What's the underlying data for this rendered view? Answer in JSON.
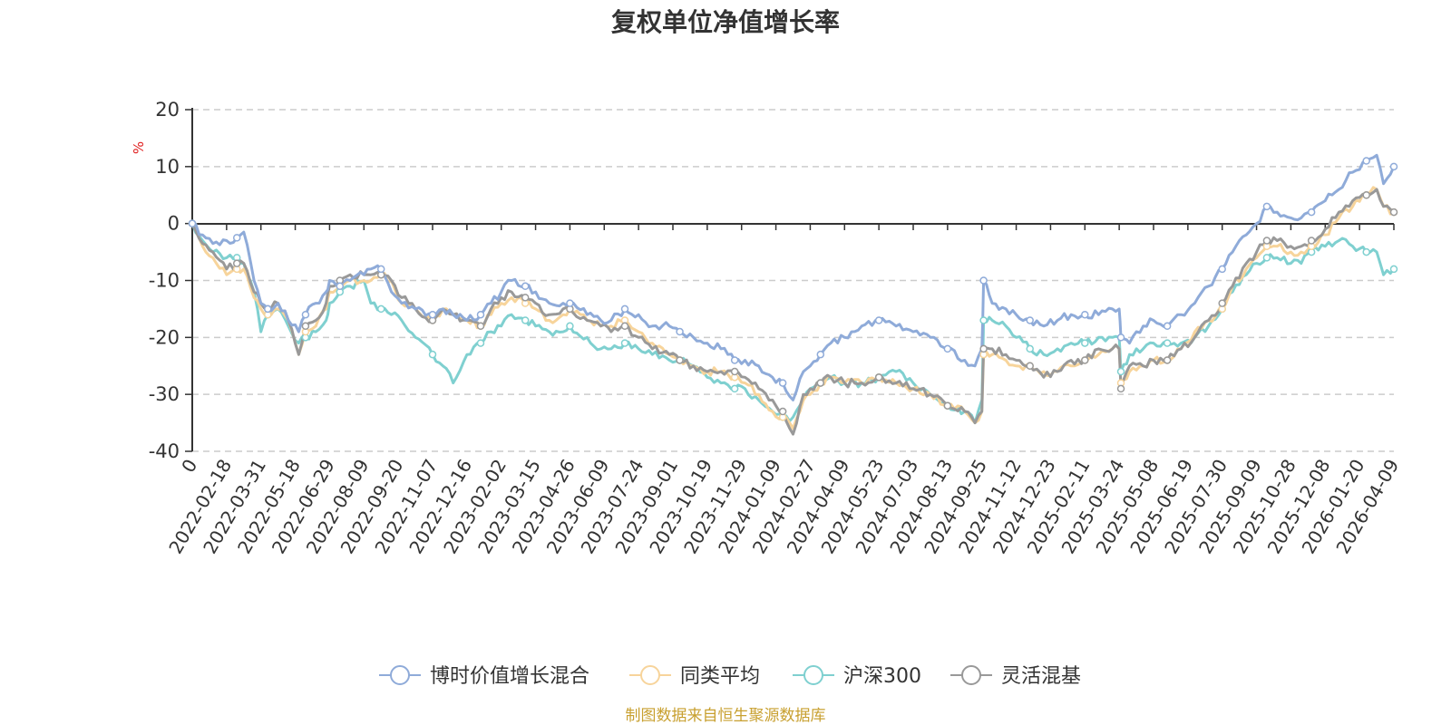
{
  "chart_data": {
    "type": "line",
    "title": "复权单位净值增长率",
    "ylabel": "%",
    "ylim": [
      -40,
      20
    ],
    "yticks": [
      20,
      10,
      0,
      -10,
      -20,
      -30,
      -40
    ],
    "x_tick_labels": [
      "0",
      "2022-02-18",
      "2022-03-31",
      "2022-05-18",
      "2022-06-29",
      "2022-08-09",
      "2022-09-20",
      "2022-11-07",
      "2022-12-16",
      "2023-02-02",
      "2023-03-15",
      "2023-04-26",
      "2023-06-09",
      "2023-07-24",
      "2023-09-01",
      "2023-10-19",
      "2023-11-29",
      "2024-01-09",
      "2024-02-27",
      "2024-04-09",
      "2024-05-23",
      "2024-07-03",
      "2024-08-13",
      "2024-09-25",
      "2024-11-12",
      "2024-12-23",
      "2025-02-11",
      "2025-03-24",
      "2025-05-08",
      "2025-06-19",
      "2025-07-30",
      "2025-09-09",
      "2025-10-28",
      "2025-12-08",
      "2026-01-20",
      "2026-04-09"
    ],
    "x_positions": [
      0,
      1,
      2,
      3,
      4,
      5,
      6,
      7,
      8,
      9,
      10,
      11,
      12,
      13,
      14,
      15,
      16,
      17,
      18,
      19,
      20,
      21,
      22,
      23,
      24,
      25,
      26,
      27,
      28,
      29,
      30,
      31,
      32,
      33,
      34,
      35
    ],
    "x_range": [
      0,
      35
    ],
    "grid": true,
    "legend_position": "bottom",
    "series": [
      {
        "name": "博时价值增长混合",
        "color": "#8fabd9",
        "x": [
          0,
          0.3,
          0.6,
          1.0,
          1.3,
          1.5,
          1.8,
          2.0,
          2.2,
          2.5,
          2.8,
          3.1,
          3.3,
          3.6,
          3.9,
          4.0,
          4.3,
          4.6,
          5.0,
          5.2,
          5.5,
          5.8,
          6.1,
          6.5,
          7.0,
          7.3,
          7.6,
          8.0,
          8.4,
          8.7,
          9.0,
          9.3,
          9.7,
          10.0,
          10.4,
          10.8,
          11.0,
          11.5,
          11.9,
          12.2,
          12.6,
          13.0,
          13.4,
          13.9,
          14.2,
          14.6,
          15.0,
          15.4,
          15.8,
          16.1,
          16.5,
          16.9,
          17.2,
          17.5,
          17.8,
          18.0,
          18.3,
          18.6,
          19.0,
          19.5,
          20.0,
          20.5,
          21.0,
          21.5,
          22.0,
          22.5,
          22.8,
          23.0,
          23.05,
          23.3,
          23.7,
          24.0,
          24.4,
          24.8,
          25.2,
          25.6,
          26.0,
          26.4,
          26.8,
          27.0,
          27.05,
          27.3,
          27.7,
          28.0,
          28.4,
          28.8,
          29.2,
          29.6,
          30.0,
          30.3,
          30.7,
          31.0,
          31.3,
          31.6,
          32.0,
          32.3,
          32.6,
          33.0,
          33.4,
          33.8,
          34.2,
          34.5,
          34.7,
          35.0
        ],
        "values": [
          0,
          -2,
          -3.5,
          -3,
          -2.5,
          -1.5,
          -10,
          -14,
          -15,
          -14,
          -17,
          -19,
          -16,
          -14,
          -12,
          -10,
          -11,
          -10,
          -9,
          -8,
          -8,
          -12,
          -14,
          -15,
          -16,
          -15,
          -16,
          -17,
          -16,
          -14,
          -12,
          -10,
          -11,
          -12,
          -14,
          -14,
          -14,
          -16,
          -17,
          -17,
          -15,
          -16,
          -18,
          -18,
          -19,
          -20,
          -21,
          -22,
          -24,
          -24,
          -25,
          -27,
          -28,
          -31,
          -26,
          -25,
          -23,
          -21,
          -20,
          -18,
          -17,
          -18,
          -19,
          -20,
          -22,
          -24,
          -25,
          -22,
          -10,
          -14,
          -15,
          -16,
          -17,
          -18,
          -17,
          -16,
          -16,
          -16,
          -15,
          -15,
          -20,
          -21,
          -18,
          -17,
          -18,
          -16,
          -14,
          -11,
          -8,
          -5,
          -2,
          0,
          3,
          2,
          1,
          1,
          2,
          4,
          6,
          9,
          11,
          12,
          7,
          10
        ]
      },
      {
        "name": "同类平均",
        "color": "#f7d49b",
        "x": [
          0,
          0.3,
          0.6,
          1.0,
          1.3,
          1.5,
          1.8,
          2.0,
          2.2,
          2.5,
          2.8,
          3.1,
          3.3,
          3.6,
          3.9,
          4.0,
          4.3,
          4.6,
          5.0,
          5.2,
          5.5,
          5.8,
          6.1,
          6.5,
          7.0,
          7.3,
          7.6,
          8.0,
          8.4,
          8.7,
          9.0,
          9.3,
          9.7,
          10.0,
          10.4,
          10.8,
          11.0,
          11.5,
          11.9,
          12.2,
          12.6,
          13.0,
          13.4,
          13.9,
          14.2,
          14.6,
          15.0,
          15.4,
          15.8,
          16.1,
          16.5,
          16.9,
          17.2,
          17.5,
          17.8,
          18.0,
          18.3,
          18.6,
          19.0,
          19.5,
          20.0,
          20.5,
          21.0,
          21.5,
          22.0,
          22.5,
          22.8,
          23.0,
          23.05,
          23.3,
          23.7,
          24.0,
          24.4,
          24.8,
          25.2,
          25.6,
          26.0,
          26.4,
          26.8,
          27.0,
          27.05,
          27.3,
          27.7,
          28.0,
          28.4,
          28.8,
          29.2,
          29.6,
          30.0,
          30.3,
          30.7,
          31.0,
          31.3,
          31.6,
          32.0,
          32.3,
          32.6,
          33.0,
          33.4,
          33.8,
          34.2,
          34.5,
          34.7,
          35.0
        ],
        "values": [
          0,
          -4,
          -6,
          -9,
          -8,
          -8,
          -13,
          -15,
          -16,
          -15,
          -17,
          -23,
          -19,
          -18,
          -15,
          -12,
          -11,
          -10,
          -10,
          -10,
          -9,
          -10,
          -14,
          -15,
          -17,
          -15,
          -16,
          -17,
          -18,
          -16,
          -14,
          -13,
          -14,
          -15,
          -17,
          -16,
          -15,
          -17,
          -18,
          -18,
          -17,
          -19,
          -21,
          -23,
          -24,
          -25,
          -26,
          -26,
          -27,
          -28,
          -30,
          -33,
          -34,
          -36,
          -31,
          -30,
          -28,
          -27,
          -28,
          -28,
          -27,
          -28,
          -29,
          -30,
          -32,
          -33,
          -35,
          -33,
          -23,
          -23,
          -24,
          -25,
          -25,
          -26,
          -26,
          -25,
          -24,
          -23,
          -22,
          -22,
          -28,
          -26,
          -25,
          -24,
          -24,
          -22,
          -19,
          -17,
          -15,
          -11,
          -8,
          -6,
          -4,
          -4,
          -5,
          -5,
          -4,
          -2,
          1,
          3,
          5,
          6,
          3,
          2
        ]
      },
      {
        "name": "沪深300",
        "color": "#7fd0d0",
        "x": [
          0,
          0.3,
          0.6,
          1.0,
          1.3,
          1.5,
          1.8,
          2.0,
          2.2,
          2.5,
          2.8,
          3.1,
          3.3,
          3.6,
          3.9,
          4.0,
          4.3,
          4.6,
          5.0,
          5.2,
          5.5,
          5.8,
          6.1,
          6.5,
          7.0,
          7.3,
          7.6,
          8.0,
          8.4,
          8.7,
          9.0,
          9.3,
          9.7,
          10.0,
          10.4,
          10.8,
          11.0,
          11.5,
          11.9,
          12.2,
          12.6,
          13.0,
          13.4,
          13.9,
          14.2,
          14.6,
          15.0,
          15.4,
          15.8,
          16.1,
          16.5,
          16.9,
          17.2,
          17.5,
          17.8,
          18.0,
          18.3,
          18.6,
          19.0,
          19.5,
          20.0,
          20.5,
          21.0,
          21.5,
          22.0,
          22.5,
          22.8,
          23.0,
          23.05,
          23.3,
          23.7,
          24.0,
          24.4,
          24.8,
          25.2,
          25.6,
          26.0,
          26.4,
          26.8,
          27.0,
          27.05,
          27.3,
          27.7,
          28.0,
          28.4,
          28.8,
          29.2,
          29.6,
          30.0,
          30.3,
          30.7,
          31.0,
          31.3,
          31.6,
          32.0,
          32.3,
          32.6,
          33.0,
          33.4,
          33.8,
          34.2,
          34.5,
          34.7,
          35.0
        ],
        "values": [
          0,
          -3,
          -5,
          -6,
          -6,
          -7,
          -12,
          -19,
          -16,
          -15,
          -18,
          -21,
          -20,
          -19,
          -17,
          -14,
          -12,
          -11,
          -10,
          -14,
          -15,
          -16,
          -17,
          -20,
          -23,
          -25,
          -28,
          -23,
          -21,
          -19,
          -18,
          -16,
          -17,
          -18,
          -19,
          -19,
          -18,
          -20,
          -22,
          -22,
          -21,
          -22,
          -23,
          -24,
          -24,
          -25,
          -27,
          -28,
          -29,
          -29,
          -31,
          -33,
          -34,
          -34,
          -31,
          -29,
          -28,
          -27,
          -28,
          -28,
          -27,
          -26,
          -28,
          -30,
          -32,
          -33,
          -35,
          -31,
          -17,
          -17,
          -18,
          -20,
          -22,
          -23,
          -22,
          -21,
          -21,
          -20,
          -20,
          -20,
          -26,
          -23,
          -22,
          -21,
          -21,
          -21,
          -20,
          -18,
          -15,
          -12,
          -9,
          -7,
          -6,
          -6,
          -7,
          -7,
          -5,
          -4,
          -3,
          -4,
          -5,
          -5,
          -9,
          -8
        ]
      },
      {
        "name": "灵活混基",
        "color": "#999999",
        "x": [
          0,
          0.3,
          0.6,
          1.0,
          1.3,
          1.5,
          1.8,
          2.0,
          2.2,
          2.5,
          2.8,
          3.1,
          3.3,
          3.6,
          3.9,
          4.0,
          4.3,
          4.6,
          5.0,
          5.2,
          5.5,
          5.8,
          6.1,
          6.5,
          7.0,
          7.3,
          7.6,
          8.0,
          8.4,
          8.7,
          9.0,
          9.3,
          9.7,
          10.0,
          10.4,
          10.8,
          11.0,
          11.5,
          11.9,
          12.2,
          12.6,
          13.0,
          13.4,
          13.9,
          14.2,
          14.6,
          15.0,
          15.4,
          15.8,
          16.1,
          16.5,
          16.9,
          17.2,
          17.5,
          17.8,
          18.0,
          18.3,
          18.6,
          19.0,
          19.5,
          20.0,
          20.5,
          21.0,
          21.5,
          22.0,
          22.5,
          22.8,
          23.0,
          23.05,
          23.3,
          23.7,
          24.0,
          24.4,
          24.8,
          25.2,
          25.6,
          26.0,
          26.4,
          26.8,
          27.0,
          27.05,
          27.3,
          27.7,
          28.0,
          28.4,
          28.8,
          29.2,
          29.6,
          30.0,
          30.3,
          30.7,
          31.0,
          31.3,
          31.6,
          32.0,
          32.3,
          32.6,
          33.0,
          33.4,
          33.8,
          34.2,
          34.5,
          34.7,
          35.0
        ],
        "values": [
          0,
          -3.5,
          -5,
          -8,
          -7,
          -7,
          -12,
          -14,
          -15,
          -14,
          -17,
          -23,
          -18,
          -17,
          -14,
          -11,
          -10,
          -9,
          -9,
          -9,
          -9,
          -10,
          -13,
          -15,
          -17,
          -15,
          -16,
          -17,
          -18,
          -15,
          -13,
          -12,
          -13,
          -14,
          -16,
          -15,
          -15,
          -17,
          -18,
          -19,
          -18,
          -20,
          -22,
          -23,
          -24,
          -25,
          -26,
          -26,
          -26,
          -27,
          -29,
          -31,
          -33,
          -37,
          -30,
          -29,
          -28,
          -27,
          -28,
          -28,
          -27,
          -28,
          -29,
          -30,
          -32,
          -33,
          -35,
          -33,
          -22,
          -22,
          -23,
          -24,
          -25,
          -27,
          -26,
          -24,
          -24,
          -22,
          -22,
          -22,
          -29,
          -25,
          -25,
          -24,
          -24,
          -22,
          -20,
          -17,
          -14,
          -11,
          -7,
          -5,
          -3,
          -3,
          -4,
          -4,
          -3,
          -1,
          2,
          4,
          5,
          6,
          3,
          2
        ]
      }
    ]
  },
  "source_text": "制图数据来自恒生聚源数据库",
  "colors": {
    "unit_label": "#e02020",
    "source_text": "#c8a030",
    "axis": "#333333",
    "grid": "#cccccc"
  }
}
